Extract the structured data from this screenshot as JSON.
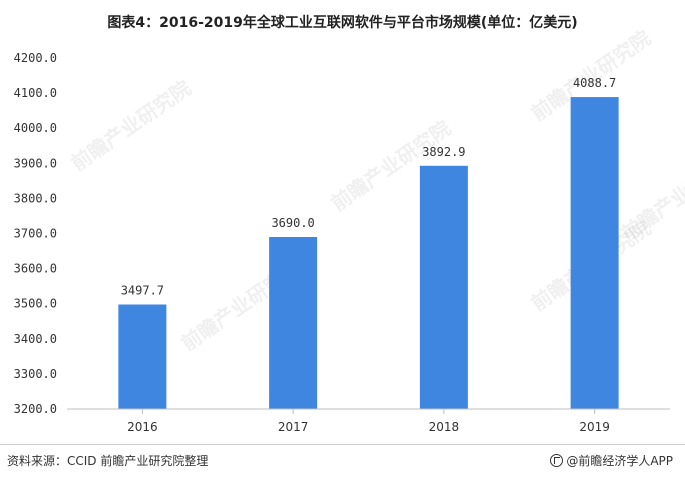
{
  "title": "图表4：2016-2019年全球工业互联网软件与平台市场规模(单位：亿美元)",
  "footer": {
    "source": "资料来源：CCID 前瞻产业研究院整理",
    "brand": "@前瞻经济学人APP"
  },
  "watermark": "前瞻产业研究院",
  "colors": {
    "bar": "#3f86e0",
    "grid": "#d0d0d0",
    "axis_text": "#333333"
  },
  "chart_data": {
    "type": "bar",
    "categories": [
      "2016",
      "2017",
      "2018",
      "2019"
    ],
    "values": [
      3497.7,
      3690.0,
      3892.9,
      4088.7
    ],
    "value_labels": [
      "3497.7",
      "3690.0",
      "3892.9",
      "4088.7"
    ],
    "ylim": [
      3200,
      4200
    ],
    "yticks": [
      "3200.0",
      "3300.0",
      "3400.0",
      "3500.0",
      "3600.0",
      "3700.0",
      "3800.0",
      "3900.0",
      "4000.0",
      "4100.0",
      "4200.0"
    ],
    "grid": false,
    "legend": "none"
  }
}
